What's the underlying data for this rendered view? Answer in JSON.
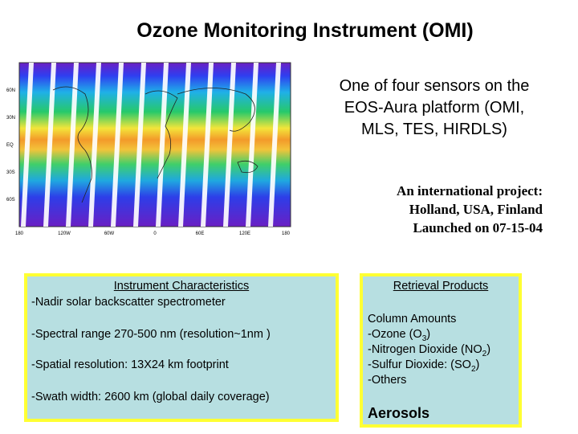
{
  "title": "Ozone Monitoring Instrument (OMI)",
  "map": {
    "lat_labels": [
      "60N",
      "30N",
      "EQ",
      "30S",
      "60S"
    ],
    "lon_labels": [
      "180",
      "120W",
      "60W",
      "0",
      "60E",
      "120E",
      "180"
    ]
  },
  "description": {
    "line1": "One of four sensors on the",
    "line2": "EOS-Aura platform (OMI,",
    "line3": "MLS, TES, HIRDLS)"
  },
  "project": {
    "line1": "An international project:",
    "line2": "Holland, USA, Finland",
    "line3": "Launched on 07-15-04"
  },
  "characteristics": {
    "heading": "Instrument Characteristics",
    "items": [
      "-Nadir solar backscatter spectrometer",
      "-Spectral range 270-500 nm (resolution~1nm )",
      "-Spatial resolution: 13X24 km footprint",
      "-Swath width: 2600 km (global daily coverage)"
    ]
  },
  "retrieval": {
    "heading": "Retrieval Products",
    "column_heading": "Column Amounts",
    "ozone": "-Ozone (O",
    "ozone_sub": "3",
    "no2": "-Nitrogen Dioxide (NO",
    "no2_sub": "2",
    "so2": "-Sulfur Dioxide: (SO",
    "so2_sub": "2",
    "close": ")",
    "others": "-Others",
    "aerosols": "Aerosols"
  },
  "colors": {
    "box_fill": "#b7dfe1",
    "box_border": "#ffff33"
  }
}
